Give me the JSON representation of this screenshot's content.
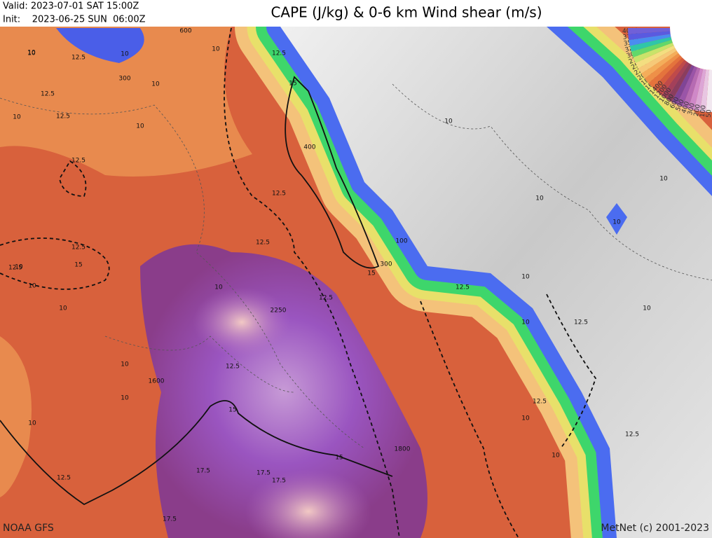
{
  "header": {
    "valid": "Valid: 2023-07-01 SAT  15:00Z",
    "init": "Init:    2023-06-25 SUN  06:00Z",
    "title": "CAPE (J/kg) & 0-6 km Wind shear (m/s)"
  },
  "footer": {
    "source": "NOAA GFS",
    "credit": "MetNet (c) 2001-2023"
  },
  "legend": {
    "labels": [
      "4000",
      "3750",
      "3500",
      "3250",
      "3000",
      "2750",
      "2500",
      "2250",
      "2000",
      "1800",
      "1600",
      "1400",
      "1200",
      "1000",
      "800",
      "600",
      "500",
      "400",
      "300",
      "200",
      "100",
      "50"
    ]
  },
  "contour_labels": [
    "10",
    "12.5",
    "10",
    "300",
    "10",
    "600",
    "10",
    "12.5",
    "12.5",
    "10",
    "12.5",
    "10",
    "12.5",
    "15",
    "400",
    "12.5",
    "12.5",
    "15",
    "12.5",
    "10",
    "10",
    "12.5",
    "100",
    "300",
    "15",
    "10",
    "2250",
    "12.5",
    "10",
    "1600",
    "10",
    "12.5",
    "10",
    "15",
    "10",
    "1800",
    "17.5",
    "17.5",
    "17.5",
    "12.5",
    "15",
    "17.5",
    "10",
    "12.5",
    "10",
    "10",
    "10",
    "12.5",
    "10",
    "12.5",
    "10",
    "12.5",
    "10",
    "10",
    "10",
    "10"
  ]
}
